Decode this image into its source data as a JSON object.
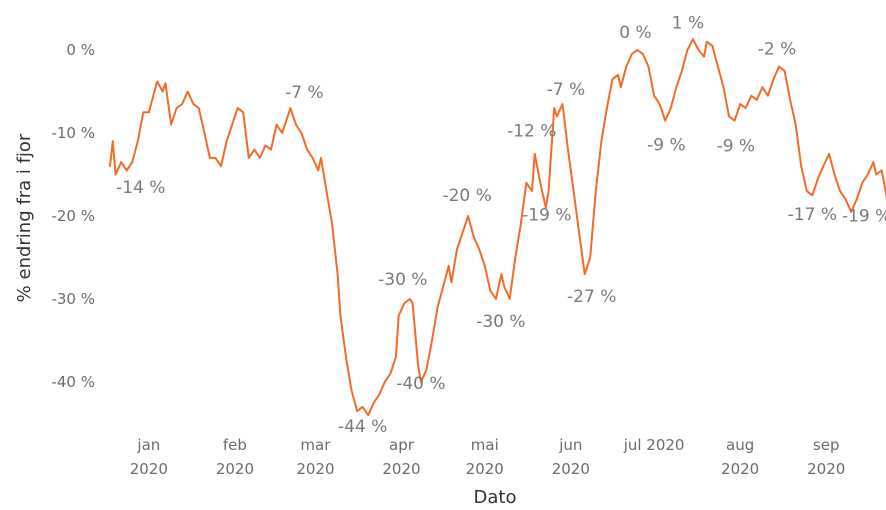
{
  "chart_data": {
    "type": "line",
    "xlabel": "Dato",
    "ylabel": "% endring fra i fjor",
    "ylim": [
      -45,
      3
    ],
    "grid": false,
    "y_ticks": [
      {
        "value": 0,
        "label": "0 %"
      },
      {
        "value": -10,
        "label": "-10 %"
      },
      {
        "value": -20,
        "label": "-20 %"
      },
      {
        "value": -30,
        "label": "-30 %"
      },
      {
        "value": -40,
        "label": "-40 %"
      }
    ],
    "x_ticks": [
      {
        "date": "2020-01-15",
        "line1": "jan",
        "line2": "2020"
      },
      {
        "date": "2020-02-15",
        "line1": "feb",
        "line2": "2020"
      },
      {
        "date": "2020-03-15",
        "line1": "mar",
        "line2": "2020"
      },
      {
        "date": "2020-04-15",
        "line1": "apr",
        "line2": "2020"
      },
      {
        "date": "2020-05-15",
        "line1": "mai",
        "line2": "2020"
      },
      {
        "date": "2020-06-15",
        "line1": "jun",
        "line2": "2020"
      },
      {
        "date": "2020-07-15",
        "line1": "jul 2020",
        "line2": ""
      },
      {
        "date": "2020-08-15",
        "line1": "aug",
        "line2": "2020"
      },
      {
        "date": "2020-09-15",
        "line1": "sep",
        "line2": "2020"
      }
    ],
    "series": [
      {
        "color": "#f26b2a",
        "points": [
          [
            "2020-01-01",
            -14
          ],
          [
            "2020-01-02",
            -11
          ],
          [
            "2020-01-03",
            -15
          ],
          [
            "2020-01-05",
            -13.5
          ],
          [
            "2020-01-07",
            -14.5
          ],
          [
            "2020-01-09",
            -13.5
          ],
          [
            "2020-01-11",
            -11
          ],
          [
            "2020-01-13",
            -7.5
          ],
          [
            "2020-01-15",
            -7.5
          ],
          [
            "2020-01-17",
            -5
          ],
          [
            "2020-01-18",
            -3.8
          ],
          [
            "2020-01-20",
            -5
          ],
          [
            "2020-01-21",
            -4
          ],
          [
            "2020-01-23",
            -9
          ],
          [
            "2020-01-25",
            -7
          ],
          [
            "2020-01-27",
            -6.5
          ],
          [
            "2020-01-29",
            -5
          ],
          [
            "2020-01-31",
            -6.5
          ],
          [
            "2020-02-02",
            -7
          ],
          [
            "2020-02-04",
            -10
          ],
          [
            "2020-02-06",
            -13
          ],
          [
            "2020-02-08",
            -13
          ],
          [
            "2020-02-10",
            -14
          ],
          [
            "2020-02-12",
            -11
          ],
          [
            "2020-02-14",
            -9
          ],
          [
            "2020-02-16",
            -7
          ],
          [
            "2020-02-18",
            -7.5
          ],
          [
            "2020-02-20",
            -13
          ],
          [
            "2020-02-22",
            -12
          ],
          [
            "2020-02-24",
            -13
          ],
          [
            "2020-02-26",
            -11.5
          ],
          [
            "2020-02-28",
            -12
          ],
          [
            "2020-03-01",
            -9
          ],
          [
            "2020-03-03",
            -10
          ],
          [
            "2020-03-05",
            -8
          ],
          [
            "2020-03-06",
            -7
          ],
          [
            "2020-03-08",
            -9
          ],
          [
            "2020-03-10",
            -10
          ],
          [
            "2020-03-12",
            -12
          ],
          [
            "2020-03-14",
            -13
          ],
          [
            "2020-03-16",
            -14.5
          ],
          [
            "2020-03-17",
            -13
          ],
          [
            "2020-03-19",
            -17
          ],
          [
            "2020-03-21",
            -21
          ],
          [
            "2020-03-23",
            -27
          ],
          [
            "2020-03-24",
            -32
          ],
          [
            "2020-03-26",
            -37
          ],
          [
            "2020-03-28",
            -41
          ],
          [
            "2020-03-30",
            -43.5
          ],
          [
            "2020-04-01",
            -43
          ],
          [
            "2020-04-03",
            -44
          ],
          [
            "2020-04-05",
            -42.5
          ],
          [
            "2020-04-07",
            -41.5
          ],
          [
            "2020-04-09",
            -40
          ],
          [
            "2020-04-11",
            -39
          ],
          [
            "2020-04-13",
            -37
          ],
          [
            "2020-04-14",
            -32
          ],
          [
            "2020-04-16",
            -30.5
          ],
          [
            "2020-04-18",
            -30
          ],
          [
            "2020-04-19",
            -30.5
          ],
          [
            "2020-04-21",
            -38
          ],
          [
            "2020-04-22",
            -40
          ],
          [
            "2020-04-24",
            -38.5
          ],
          [
            "2020-04-26",
            -35
          ],
          [
            "2020-04-28",
            -31
          ],
          [
            "2020-04-30",
            -28.5
          ],
          [
            "2020-05-02",
            -26
          ],
          [
            "2020-05-03",
            -28
          ],
          [
            "2020-05-05",
            -24
          ],
          [
            "2020-05-07",
            -22
          ],
          [
            "2020-05-09",
            -20
          ],
          [
            "2020-05-11",
            -22.5
          ],
          [
            "2020-05-13",
            -24
          ],
          [
            "2020-05-15",
            -26
          ],
          [
            "2020-05-17",
            -29
          ],
          [
            "2020-05-19",
            -30
          ],
          [
            "2020-05-21",
            -27
          ],
          [
            "2020-05-22",
            -28.5
          ],
          [
            "2020-05-24",
            -30
          ],
          [
            "2020-05-26",
            -25
          ],
          [
            "2020-05-28",
            -21
          ],
          [
            "2020-05-30",
            -16
          ],
          [
            "2020-06-01",
            -17
          ],
          [
            "2020-06-02",
            -12.5
          ],
          [
            "2020-06-04",
            -16
          ],
          [
            "2020-06-06",
            -19
          ],
          [
            "2020-06-07",
            -17
          ],
          [
            "2020-06-09",
            -7
          ],
          [
            "2020-06-10",
            -8
          ],
          [
            "2020-06-12",
            -6.5
          ],
          [
            "2020-06-14",
            -12
          ],
          [
            "2020-06-16",
            -17
          ],
          [
            "2020-06-18",
            -22
          ],
          [
            "2020-06-20",
            -27
          ],
          [
            "2020-06-22",
            -25
          ],
          [
            "2020-06-24",
            -17
          ],
          [
            "2020-06-26",
            -11
          ],
          [
            "2020-06-28",
            -7
          ],
          [
            "2020-06-30",
            -3.5
          ],
          [
            "2020-07-02",
            -3
          ],
          [
            "2020-07-03",
            -4.5
          ],
          [
            "2020-07-05",
            -2
          ],
          [
            "2020-07-07",
            -0.5
          ],
          [
            "2020-07-09",
            0
          ],
          [
            "2020-07-11",
            -0.5
          ],
          [
            "2020-07-13",
            -2
          ],
          [
            "2020-07-15",
            -5.5
          ],
          [
            "2020-07-17",
            -6.5
          ],
          [
            "2020-07-19",
            -8.5
          ],
          [
            "2020-07-21",
            -7
          ],
          [
            "2020-07-23",
            -4.5
          ],
          [
            "2020-07-25",
            -2.5
          ],
          [
            "2020-07-27",
            0
          ],
          [
            "2020-07-29",
            1.3
          ],
          [
            "2020-07-31",
            0
          ],
          [
            "2020-08-02",
            -0.8
          ],
          [
            "2020-08-03",
            1
          ],
          [
            "2020-08-05",
            0.5
          ],
          [
            "2020-08-07",
            -2
          ],
          [
            "2020-08-09",
            -4.5
          ],
          [
            "2020-08-11",
            -8
          ],
          [
            "2020-08-13",
            -8.5
          ],
          [
            "2020-08-15",
            -6.5
          ],
          [
            "2020-08-17",
            -7
          ],
          [
            "2020-08-19",
            -5.5
          ],
          [
            "2020-08-21",
            -6
          ],
          [
            "2020-08-23",
            -4.5
          ],
          [
            "2020-08-25",
            -5.5
          ],
          [
            "2020-08-27",
            -3.5
          ],
          [
            "2020-08-29",
            -2
          ],
          [
            "2020-08-31",
            -2.5
          ],
          [
            "2020-09-02",
            -6
          ],
          [
            "2020-09-04",
            -9
          ],
          [
            "2020-09-06",
            -14
          ],
          [
            "2020-09-08",
            -17
          ],
          [
            "2020-09-10",
            -17.5
          ],
          [
            "2020-09-12",
            -15.5
          ],
          [
            "2020-09-14",
            -14
          ],
          [
            "2020-09-16",
            -12.5
          ],
          [
            "2020-09-18",
            -15
          ],
          [
            "2020-09-20",
            -17
          ],
          [
            "2020-09-22",
            -18
          ],
          [
            "2020-09-24",
            -19.5
          ],
          [
            "2020-09-26",
            -18
          ],
          [
            "2020-09-28",
            -16
          ],
          [
            "2020-09-30",
            -15
          ],
          [
            "2020-10-02",
            -13.5
          ],
          [
            "2020-10-03",
            -15
          ],
          [
            "2020-10-05",
            -14.5
          ],
          [
            "2020-10-07",
            -18
          ],
          [
            "2020-10-09",
            -19.5
          ],
          [
            "2020-10-11",
            -18.5
          ]
        ]
      }
    ],
    "data_labels": [
      {
        "text": "-14 %",
        "date": "2020-01-02",
        "value": -14
      },
      {
        "text": "-7 %",
        "date": "2020-03-06",
        "value": -7
      },
      {
        "text": "-44 %",
        "date": "2020-04-01",
        "value": -44
      },
      {
        "text": "-30 %",
        "date": "2020-04-18",
        "value": -30
      },
      {
        "text": "-40 %",
        "date": "2020-04-22",
        "value": -40
      },
      {
        "text": "-20 %",
        "date": "2020-05-09",
        "value": -20
      },
      {
        "text": "-30 %",
        "date": "2020-05-19",
        "value": -30
      },
      {
        "text": "-12 %",
        "date": "2020-06-02",
        "value": -12
      },
      {
        "text": "-19 %",
        "date": "2020-06-06",
        "value": -19
      },
      {
        "text": "-7 %",
        "date": "2020-06-10",
        "value": -7
      },
      {
        "text": "-27 %",
        "date": "2020-06-20",
        "value": -27
      },
      {
        "text": "0 %",
        "date": "2020-07-09",
        "value": 0
      },
      {
        "text": "-9 %",
        "date": "2020-07-18",
        "value": -9
      },
      {
        "text": "1 %",
        "date": "2020-07-29",
        "value": 1
      },
      {
        "text": "-9 %",
        "date": "2020-08-12",
        "value": -9
      },
      {
        "text": "-2 %",
        "date": "2020-08-29",
        "value": -2
      },
      {
        "text": "-17 %",
        "date": "2020-09-10",
        "value": -17
      },
      {
        "text": "-19 %",
        "date": "2020-10-01",
        "value": -19
      }
    ]
  }
}
